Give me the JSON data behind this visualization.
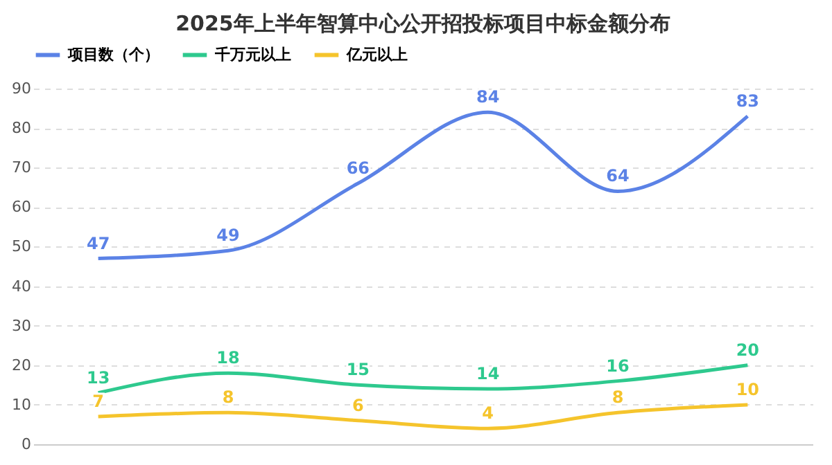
{
  "chart_data": {
    "type": "line",
    "title": "2025年上半年智算中心公开招投标项目中标金额分布",
    "categories": [
      null,
      null,
      null,
      null,
      null,
      null
    ],
    "series": [
      {
        "name": "项目数（个）",
        "color": "#5b82e6",
        "values": [
          47,
          49,
          66,
          84,
          64,
          83
        ]
      },
      {
        "name": "千万元以上",
        "color": "#2ec98e",
        "values": [
          13,
          18,
          15,
          14,
          16,
          20
        ]
      },
      {
        "name": "亿元以上",
        "color": "#f5c42c",
        "values": [
          7,
          8,
          6,
          4,
          8,
          10
        ]
      }
    ],
    "ylim": [
      0,
      90
    ],
    "yticks": [
      0,
      10,
      20,
      30,
      40,
      50,
      60,
      70,
      80,
      90
    ],
    "grid": "y",
    "legend": "top",
    "data_labels": true,
    "tick_labels": "y",
    "marker": "none",
    "line_style": "solid"
  }
}
